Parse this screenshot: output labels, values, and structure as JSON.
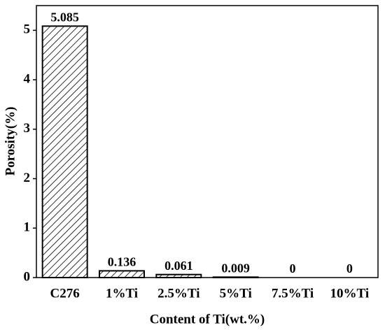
{
  "chart_data": {
    "type": "bar",
    "x_label": "Content of Ti(wt.%)",
    "y_label": "Porosity(%)",
    "categories": [
      "C276",
      "1%Ti",
      "2.5%Ti",
      "5%Ti",
      "7.5%Ti",
      "10%Ti"
    ],
    "values": [
      5.085,
      0.136,
      0.061,
      0.009,
      0,
      0
    ],
    "color": "#000000",
    "ylim": [
      0,
      5.5
    ],
    "yticks": [
      0,
      1,
      2,
      3,
      4,
      5
    ],
    "grid": false
  }
}
